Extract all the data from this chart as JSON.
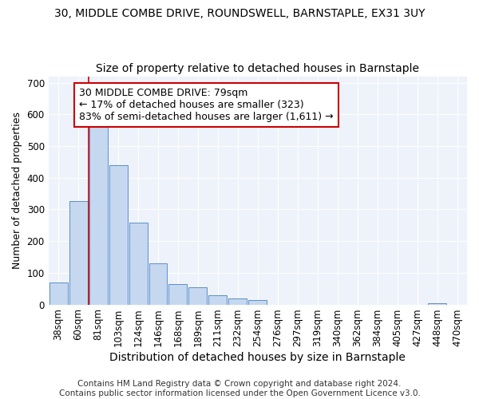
{
  "title1": "30, MIDDLE COMBE DRIVE, ROUNDSWELL, BARNSTAPLE, EX31 3UY",
  "title2": "Size of property relative to detached houses in Barnstaple",
  "xlabel": "Distribution of detached houses by size in Barnstaple",
  "ylabel": "Number of detached properties",
  "categories": [
    "38sqm",
    "60sqm",
    "81sqm",
    "103sqm",
    "124sqm",
    "146sqm",
    "168sqm",
    "189sqm",
    "211sqm",
    "232sqm",
    "254sqm",
    "276sqm",
    "297sqm",
    "319sqm",
    "340sqm",
    "362sqm",
    "384sqm",
    "405sqm",
    "427sqm",
    "448sqm",
    "470sqm"
  ],
  "values": [
    70,
    325,
    560,
    440,
    258,
    130,
    65,
    55,
    30,
    18,
    15,
    0,
    0,
    0,
    0,
    0,
    0,
    0,
    0,
    5,
    0
  ],
  "bar_color": "#c5d8f0",
  "bar_edge_color": "#5b8fc9",
  "vline_color": "#cc0000",
  "annotation_text": "30 MIDDLE COMBE DRIVE: 79sqm\n← 17% of detached houses are smaller (323)\n83% of semi-detached houses are larger (1,611) →",
  "annotation_box_color": "white",
  "annotation_box_edge": "#cc0000",
  "ylim": [
    0,
    720
  ],
  "yticks": [
    0,
    100,
    200,
    300,
    400,
    500,
    600,
    700
  ],
  "footer": "Contains HM Land Registry data © Crown copyright and database right 2024.\nContains public sector information licensed under the Open Government Licence v3.0.",
  "bg_color": "#eef2fb",
  "grid_color": "#ffffff",
  "fig_color": "#ffffff",
  "title1_fontsize": 10,
  "title2_fontsize": 10,
  "xlabel_fontsize": 10,
  "ylabel_fontsize": 9,
  "tick_fontsize": 8.5,
  "annot_fontsize": 9,
  "footer_fontsize": 7.5
}
